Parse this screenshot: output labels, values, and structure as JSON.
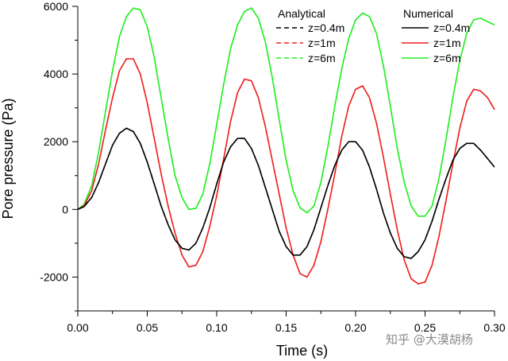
{
  "chart_data": {
    "type": "line",
    "xlabel": "Time (s)",
    "ylabel": "Pore pressure (Pa)",
    "xlim": [
      0,
      0.3
    ],
    "ylim": [
      -3000,
      6000
    ],
    "x_ticks": [
      0.0,
      0.05,
      0.1,
      0.15,
      0.2,
      0.25,
      0.3
    ],
    "x_tick_labels": [
      "0.00",
      "0.05",
      "0.10",
      "0.15",
      "0.20",
      "0.25",
      "0.30"
    ],
    "y_ticks": [
      -2000,
      0,
      2000,
      4000,
      6000
    ],
    "y_tick_labels": [
      "-2000",
      "0",
      "2000",
      "4000",
      "6000"
    ],
    "legend": {
      "groups": [
        {
          "title": "Analytical",
          "entries": [
            {
              "label": "z=0.4m",
              "color": "#000000",
              "style": "dashed"
            },
            {
              "label": "z=1m",
              "color": "#ee2222",
              "style": "dashed"
            },
            {
              "label": "z=6m",
              "color": "#22ee22",
              "style": "dashed"
            }
          ]
        },
        {
          "title": "Numerical",
          "entries": [
            {
              "label": "z=0.4m",
              "color": "#000000",
              "style": "solid"
            },
            {
              "label": "z=1m",
              "color": "#ee2222",
              "style": "solid"
            },
            {
              "label": "z=6m",
              "color": "#22ee22",
              "style": "solid"
            }
          ]
        }
      ]
    },
    "series": [
      {
        "name": "z=6m",
        "color": "#22ee22",
        "points": [
          [
            0,
            0
          ],
          [
            0.0045,
            150
          ],
          [
            0.01,
            700
          ],
          [
            0.015,
            1700
          ],
          [
            0.02,
            2900
          ],
          [
            0.025,
            4100
          ],
          [
            0.03,
            5100
          ],
          [
            0.035,
            5700
          ],
          [
            0.04,
            5950
          ],
          [
            0.045,
            5900
          ],
          [
            0.05,
            5400
          ],
          [
            0.055,
            4500
          ],
          [
            0.06,
            3300
          ],
          [
            0.065,
            2100
          ],
          [
            0.07,
            1000
          ],
          [
            0.075,
            350
          ],
          [
            0.08,
            0
          ],
          [
            0.085,
            30
          ],
          [
            0.09,
            450
          ],
          [
            0.095,
            1350
          ],
          [
            0.1,
            2500
          ],
          [
            0.105,
            3700
          ],
          [
            0.11,
            4750
          ],
          [
            0.115,
            5450
          ],
          [
            0.12,
            5850
          ],
          [
            0.125,
            5950
          ],
          [
            0.13,
            5650
          ],
          [
            0.135,
            4950
          ],
          [
            0.14,
            3900
          ],
          [
            0.145,
            2650
          ],
          [
            0.15,
            1450
          ],
          [
            0.155,
            550
          ],
          [
            0.16,
            50
          ],
          [
            0.165,
            -100
          ],
          [
            0.17,
            100
          ],
          [
            0.175,
            800
          ],
          [
            0.18,
            1850
          ],
          [
            0.185,
            3050
          ],
          [
            0.19,
            4150
          ],
          [
            0.195,
            5050
          ],
          [
            0.2,
            5600
          ],
          [
            0.205,
            5800
          ],
          [
            0.21,
            5700
          ],
          [
            0.215,
            5200
          ],
          [
            0.22,
            4250
          ],
          [
            0.225,
            3050
          ],
          [
            0.23,
            1800
          ],
          [
            0.235,
            800
          ],
          [
            0.24,
            100
          ],
          [
            0.245,
            -200
          ],
          [
            0.25,
            -200
          ],
          [
            0.255,
            100
          ],
          [
            0.26,
            900
          ],
          [
            0.265,
            2050
          ],
          [
            0.27,
            3300
          ],
          [
            0.275,
            4400
          ],
          [
            0.28,
            5200
          ],
          [
            0.285,
            5600
          ],
          [
            0.29,
            5650
          ],
          [
            0.295,
            5550
          ],
          [
            0.3,
            5450
          ]
        ]
      },
      {
        "name": "z=1m",
        "color": "#ee2222",
        "points": [
          [
            0,
            0
          ],
          [
            0.0045,
            100
          ],
          [
            0.01,
            550
          ],
          [
            0.015,
            1350
          ],
          [
            0.02,
            2350
          ],
          [
            0.025,
            3300
          ],
          [
            0.03,
            4100
          ],
          [
            0.035,
            4450
          ],
          [
            0.04,
            4450
          ],
          [
            0.045,
            4000
          ],
          [
            0.05,
            3150
          ],
          [
            0.055,
            2100
          ],
          [
            0.06,
            1050
          ],
          [
            0.065,
            100
          ],
          [
            0.07,
            -700
          ],
          [
            0.075,
            -1350
          ],
          [
            0.08,
            -1700
          ],
          [
            0.085,
            -1650
          ],
          [
            0.09,
            -1250
          ],
          [
            0.095,
            -500
          ],
          [
            0.1,
            400
          ],
          [
            0.105,
            1500
          ],
          [
            0.11,
            2600
          ],
          [
            0.115,
            3450
          ],
          [
            0.12,
            3850
          ],
          [
            0.125,
            3800
          ],
          [
            0.13,
            3300
          ],
          [
            0.135,
            2450
          ],
          [
            0.14,
            1450
          ],
          [
            0.145,
            450
          ],
          [
            0.15,
            -550
          ],
          [
            0.155,
            -1350
          ],
          [
            0.16,
            -1900
          ],
          [
            0.165,
            -2000
          ],
          [
            0.17,
            -1650
          ],
          [
            0.175,
            -950
          ],
          [
            0.18,
            0
          ],
          [
            0.185,
            1050
          ],
          [
            0.19,
            2150
          ],
          [
            0.195,
            3050
          ],
          [
            0.2,
            3550
          ],
          [
            0.205,
            3650
          ],
          [
            0.21,
            3300
          ],
          [
            0.215,
            2550
          ],
          [
            0.22,
            1550
          ],
          [
            0.225,
            450
          ],
          [
            0.23,
            -600
          ],
          [
            0.235,
            -1500
          ],
          [
            0.24,
            -2050
          ],
          [
            0.245,
            -2200
          ],
          [
            0.25,
            -2150
          ],
          [
            0.255,
            -1650
          ],
          [
            0.26,
            -800
          ],
          [
            0.265,
            250
          ],
          [
            0.27,
            1350
          ],
          [
            0.275,
            2400
          ],
          [
            0.28,
            3200
          ],
          [
            0.285,
            3550
          ],
          [
            0.29,
            3500
          ],
          [
            0.295,
            3300
          ],
          [
            0.3,
            2950
          ]
        ]
      },
      {
        "name": "z=0.4m",
        "color": "#000000",
        "points": [
          [
            0,
            0
          ],
          [
            0.0045,
            80
          ],
          [
            0.01,
            350
          ],
          [
            0.015,
            800
          ],
          [
            0.02,
            1350
          ],
          [
            0.025,
            1900
          ],
          [
            0.03,
            2250
          ],
          [
            0.035,
            2400
          ],
          [
            0.04,
            2300
          ],
          [
            0.045,
            1950
          ],
          [
            0.05,
            1400
          ],
          [
            0.055,
            750
          ],
          [
            0.06,
            100
          ],
          [
            0.065,
            -450
          ],
          [
            0.07,
            -900
          ],
          [
            0.075,
            -1150
          ],
          [
            0.08,
            -1200
          ],
          [
            0.085,
            -1000
          ],
          [
            0.09,
            -550
          ],
          [
            0.095,
            50
          ],
          [
            0.1,
            750
          ],
          [
            0.105,
            1400
          ],
          [
            0.11,
            1850
          ],
          [
            0.115,
            2100
          ],
          [
            0.12,
            2100
          ],
          [
            0.125,
            1800
          ],
          [
            0.13,
            1300
          ],
          [
            0.135,
            650
          ],
          [
            0.14,
            0
          ],
          [
            0.145,
            -650
          ],
          [
            0.15,
            -1100
          ],
          [
            0.155,
            -1350
          ],
          [
            0.16,
            -1350
          ],
          [
            0.165,
            -1100
          ],
          [
            0.17,
            -600
          ],
          [
            0.175,
            50
          ],
          [
            0.18,
            700
          ],
          [
            0.185,
            1300
          ],
          [
            0.19,
            1750
          ],
          [
            0.195,
            2000
          ],
          [
            0.2,
            2000
          ],
          [
            0.205,
            1750
          ],
          [
            0.21,
            1250
          ],
          [
            0.215,
            600
          ],
          [
            0.22,
            -100
          ],
          [
            0.225,
            -700
          ],
          [
            0.23,
            -1150
          ],
          [
            0.235,
            -1400
          ],
          [
            0.24,
            -1450
          ],
          [
            0.245,
            -1250
          ],
          [
            0.25,
            -900
          ],
          [
            0.255,
            -350
          ],
          [
            0.26,
            300
          ],
          [
            0.265,
            900
          ],
          [
            0.27,
            1450
          ],
          [
            0.275,
            1800
          ],
          [
            0.28,
            1950
          ],
          [
            0.285,
            1950
          ],
          [
            0.29,
            1750
          ],
          [
            0.295,
            1500
          ],
          [
            0.3,
            1250
          ]
        ]
      }
    ]
  },
  "watermark": "知乎 @大漠胡杨"
}
